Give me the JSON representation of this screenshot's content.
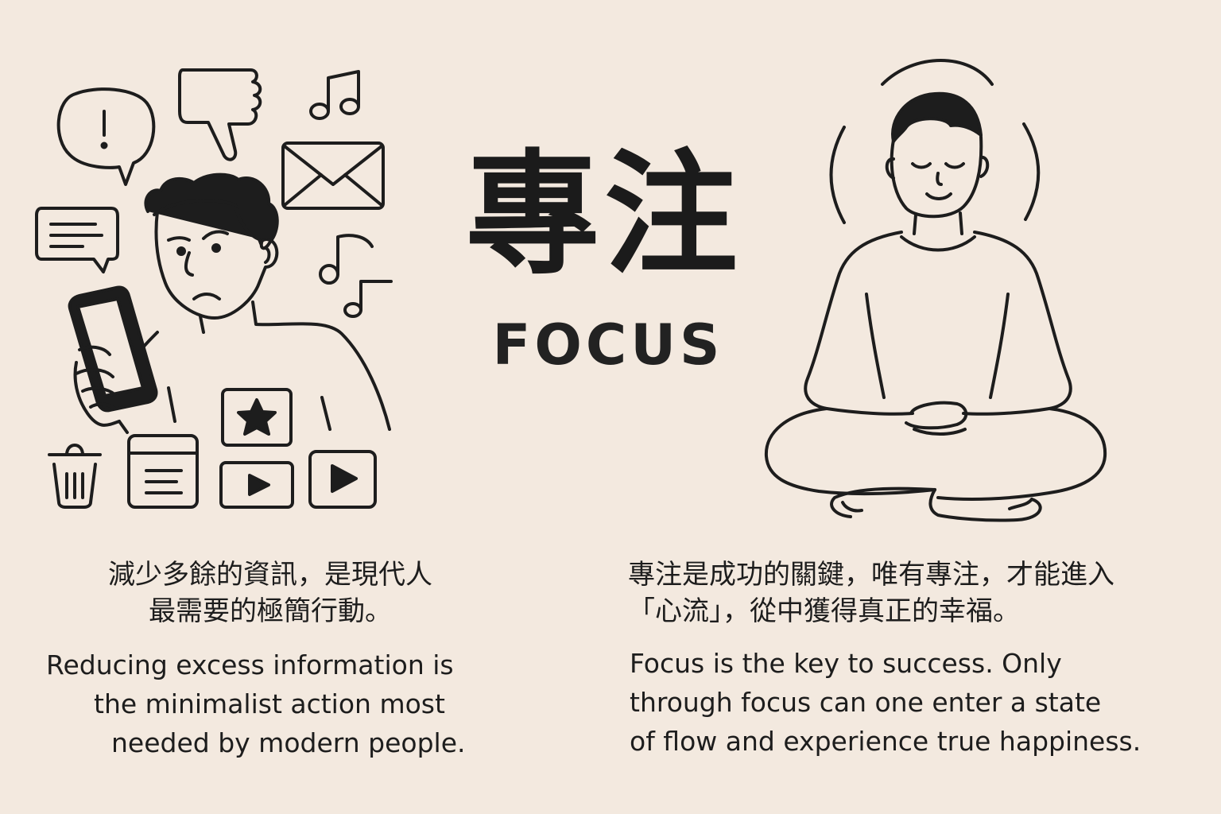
{
  "title": {
    "zh": "專注",
    "en": "FOCUS"
  },
  "left_panel": {
    "zh_lines": [
      "減少多餘的資訊，是現代人",
      "最需要的極簡行動。"
    ],
    "en_lines": [
      "Reducing excess information is",
      "the minimalist action most",
      "needed by modern people."
    ]
  },
  "right_panel": {
    "zh_lines": [
      "專注是成功的關鍵，唯有專注，才能進入",
      "「心流」，從中獲得真正的幸福。"
    ],
    "en_lines": [
      "Focus is the key to success. Only",
      "through focus can one enter a state",
      "of flow and experience true happiness."
    ]
  },
  "icons": {
    "left": [
      "exclamation-bubble-icon",
      "thumbs-down-icon",
      "music-note-icon",
      "message-bubble-icon",
      "envelope-icon",
      "music-note-icon",
      "phone-icon",
      "trash-icon",
      "document-icon",
      "star-icon",
      "play-icon",
      "play-icon"
    ],
    "right": [
      "meditating-person-illustration"
    ]
  },
  "colors": {
    "background": "#f3e9df",
    "ink": "#1d1d1d"
  }
}
